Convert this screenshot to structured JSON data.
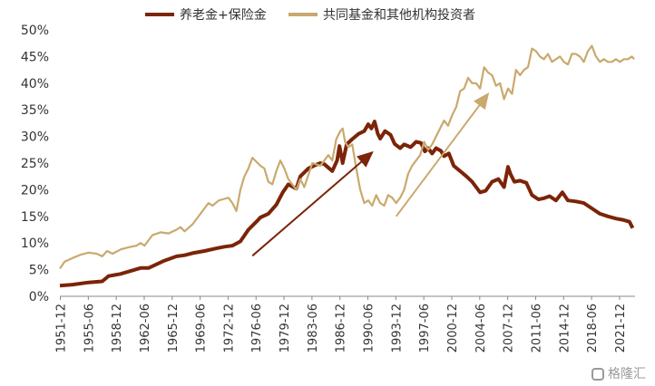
{
  "chart_data": {
    "type": "line",
    "title": "",
    "xlabel": "",
    "ylabel": "",
    "ylim": [
      0,
      50
    ],
    "y_ticks": [
      "0%",
      "5%",
      "10%",
      "15%",
      "20%",
      "25%",
      "30%",
      "35%",
      "40%",
      "45%",
      "50%"
    ],
    "x_ticks": [
      "1951-12",
      "1955-06",
      "1958-12",
      "1962-06",
      "1965-12",
      "1969-06",
      "1972-12",
      "1976-06",
      "1979-12",
      "1983-06",
      "1986-12",
      "1990-06",
      "1993-12",
      "1997-06",
      "2000-12",
      "2004-06",
      "2007-12",
      "2011-06",
      "2014-12",
      "2018-06",
      "2021-12"
    ],
    "legend_position": "top",
    "series": [
      {
        "name": "养老金+保险金",
        "color": "#7B2408",
        "x": [
          1951.9,
          1953.5,
          1955.5,
          1957.2,
          1958.0,
          1959.5,
          1962.0,
          1963.0,
          1965.0,
          1966.5,
          1967.5,
          1968.5,
          1970.0,
          1971.5,
          1972.5,
          1973.5,
          1974.5,
          1975.5,
          1976.5,
          1977.0,
          1978.0,
          1979.0,
          1979.8,
          1980.5,
          1981.5,
          1982.0,
          1983.0,
          1983.7,
          1984.5,
          1985.0,
          1986.0,
          1986.6,
          1986.9,
          1987.3,
          1987.8,
          1988.5,
          1989.3,
          1990.0,
          1990.5,
          1990.9,
          1991.3,
          1991.7,
          1992.0,
          1992.6,
          1993.3,
          1993.8,
          1994.5,
          1995.0,
          1995.8,
          1996.5,
          1997.1,
          1997.6,
          1998.0,
          1998.5,
          1999.0,
          1999.6,
          2000.0,
          2000.6,
          2001.2,
          2002.0,
          2002.8,
          2003.5,
          2004.5,
          2005.2,
          2006.0,
          2006.8,
          2007.5,
          2008.0,
          2008.3,
          2008.8,
          2009.5,
          2010.3,
          2011.0,
          2011.8,
          2012.5,
          2013.2,
          2014.0,
          2014.8,
          2015.5,
          2016.5,
          2017.5,
          2018.5,
          2019.5,
          2020.5,
          2021.5,
          2022.5,
          2023.2,
          2023.6
        ],
        "values": [
          2.0,
          2.2,
          2.6,
          2.8,
          3.8,
          4.2,
          5.3,
          5.3,
          6.7,
          7.5,
          7.7,
          8.1,
          8.5,
          9.0,
          9.3,
          9.5,
          10.3,
          12.5,
          14.0,
          14.8,
          15.5,
          17.2,
          19.5,
          21.0,
          20.2,
          22.5,
          24.0,
          24.5,
          25.0,
          24.8,
          23.5,
          25.5,
          28.2,
          25.0,
          28.5,
          29.5,
          30.5,
          31.0,
          32.3,
          31.5,
          32.8,
          30.5,
          29.6,
          31.0,
          30.3,
          28.6,
          27.8,
          28.5,
          28.0,
          29.0,
          28.8,
          27.2,
          27.8,
          26.8,
          27.8,
          27.3,
          26.3,
          26.8,
          24.5,
          23.5,
          22.5,
          21.5,
          19.5,
          19.8,
          21.5,
          22.0,
          20.5,
          24.3,
          23.0,
          21.5,
          21.7,
          21.3,
          19.0,
          18.2,
          18.4,
          18.8,
          18.0,
          19.5,
          18.0,
          17.8,
          17.5,
          16.5,
          15.5,
          15.0,
          14.6,
          14.3,
          14.0,
          12.8
        ]
      },
      {
        "name": "共同基金和其他机构投资者",
        "color": "#C9A96E",
        "x": [
          1951.9,
          1952.5,
          1953.5,
          1954.5,
          1955.5,
          1956.5,
          1957.2,
          1957.8,
          1958.5,
          1959.5,
          1960.5,
          1961.5,
          1962.0,
          1962.5,
          1963.5,
          1964.5,
          1965.5,
          1966.5,
          1967.0,
          1967.5,
          1968.5,
          1969.5,
          1970.5,
          1971.0,
          1971.8,
          1972.3,
          1973.0,
          1973.5,
          1974.0,
          1974.5,
          1975.0,
          1975.5,
          1976.0,
          1977.0,
          1977.5,
          1978.0,
          1978.5,
          1979.0,
          1979.5,
          1980.0,
          1980.5,
          1981.0,
          1981.5,
          1982.0,
          1982.5,
          1983.5,
          1984.5,
          1985.5,
          1986.0,
          1986.5,
          1987.0,
          1987.3,
          1987.6,
          1988.0,
          1988.5,
          1989.0,
          1989.5,
          1990.0,
          1990.5,
          1991.0,
          1991.5,
          1992.0,
          1992.5,
          1993.0,
          1993.5,
          1994.0,
          1994.5,
          1995.0,
          1995.5,
          1996.0,
          1996.5,
          1997.0,
          1997.5,
          1998.0,
          1998.5,
          1999.0,
          1999.5,
          2000.0,
          2000.5,
          2001.0,
          2001.5,
          2002.0,
          2002.5,
          2003.0,
          2003.5,
          2004.0,
          2004.5,
          2005.0,
          2005.5,
          2006.0,
          2006.5,
          2007.0,
          2007.5,
          2008.0,
          2008.5,
          2009.0,
          2009.5,
          2010.0,
          2010.5,
          2011.0,
          2011.5,
          2012.0,
          2012.5,
          2013.0,
          2013.5,
          2014.0,
          2014.5,
          2015.0,
          2015.5,
          2016.0,
          2016.5,
          2017.0,
          2017.5,
          2018.0,
          2018.5,
          2019.0,
          2019.5,
          2020.0,
          2020.5,
          2021.0,
          2021.5,
          2022.0,
          2022.5,
          2023.0,
          2023.5,
          2023.8
        ],
        "values": [
          5.2,
          6.5,
          7.2,
          7.8,
          8.2,
          8.0,
          7.5,
          8.5,
          8.0,
          8.8,
          9.2,
          9.5,
          10.0,
          9.5,
          11.5,
          12.0,
          11.8,
          12.5,
          13.0,
          12.2,
          13.5,
          15.5,
          17.5,
          17.0,
          18.0,
          18.2,
          18.5,
          17.5,
          16.0,
          20.0,
          22.5,
          24.0,
          26.0,
          24.5,
          24.0,
          21.5,
          21.0,
          23.5,
          25.5,
          24.0,
          22.0,
          21.0,
          20.0,
          22.0,
          20.5,
          25.0,
          24.5,
          26.5,
          25.5,
          29.5,
          31.0,
          31.5,
          29.0,
          28.0,
          28.5,
          24.0,
          20.0,
          17.5,
          18.0,
          17.0,
          19.0,
          17.5,
          17.0,
          19.0,
          18.5,
          17.5,
          18.5,
          20.0,
          23.0,
          24.5,
          25.5,
          26.5,
          29.0,
          27.5,
          28.5,
          30.0,
          31.5,
          33.0,
          32.0,
          34.0,
          35.5,
          38.5,
          39.0,
          41.0,
          40.0,
          40.0,
          39.0,
          43.0,
          42.0,
          41.5,
          39.5,
          40.0,
          37.0,
          39.0,
          38.0,
          42.5,
          41.5,
          42.5,
          43.0,
          46.5,
          46.0,
          45.0,
          44.5,
          45.5,
          44.0,
          44.5,
          45.0,
          44.0,
          43.5,
          45.5,
          45.5,
          45.0,
          44.0,
          46.0,
          47.0,
          45.0,
          44.0,
          44.5,
          44.0,
          44.0,
          44.5,
          44.0,
          44.5,
          44.5,
          45.0,
          44.5
        ]
      }
    ],
    "annotations": [
      {
        "type": "arrow",
        "color": "#7B2408",
        "from": [
          1976.0,
          7.6
        ],
        "to": [
          1991.0,
          27.0
        ]
      },
      {
        "type": "arrow",
        "color": "#C9A96E",
        "from": [
          1994.0,
          15.0
        ],
        "to": [
          2005.5,
          38.0
        ]
      }
    ]
  },
  "watermark": {
    "text": "格隆汇"
  }
}
